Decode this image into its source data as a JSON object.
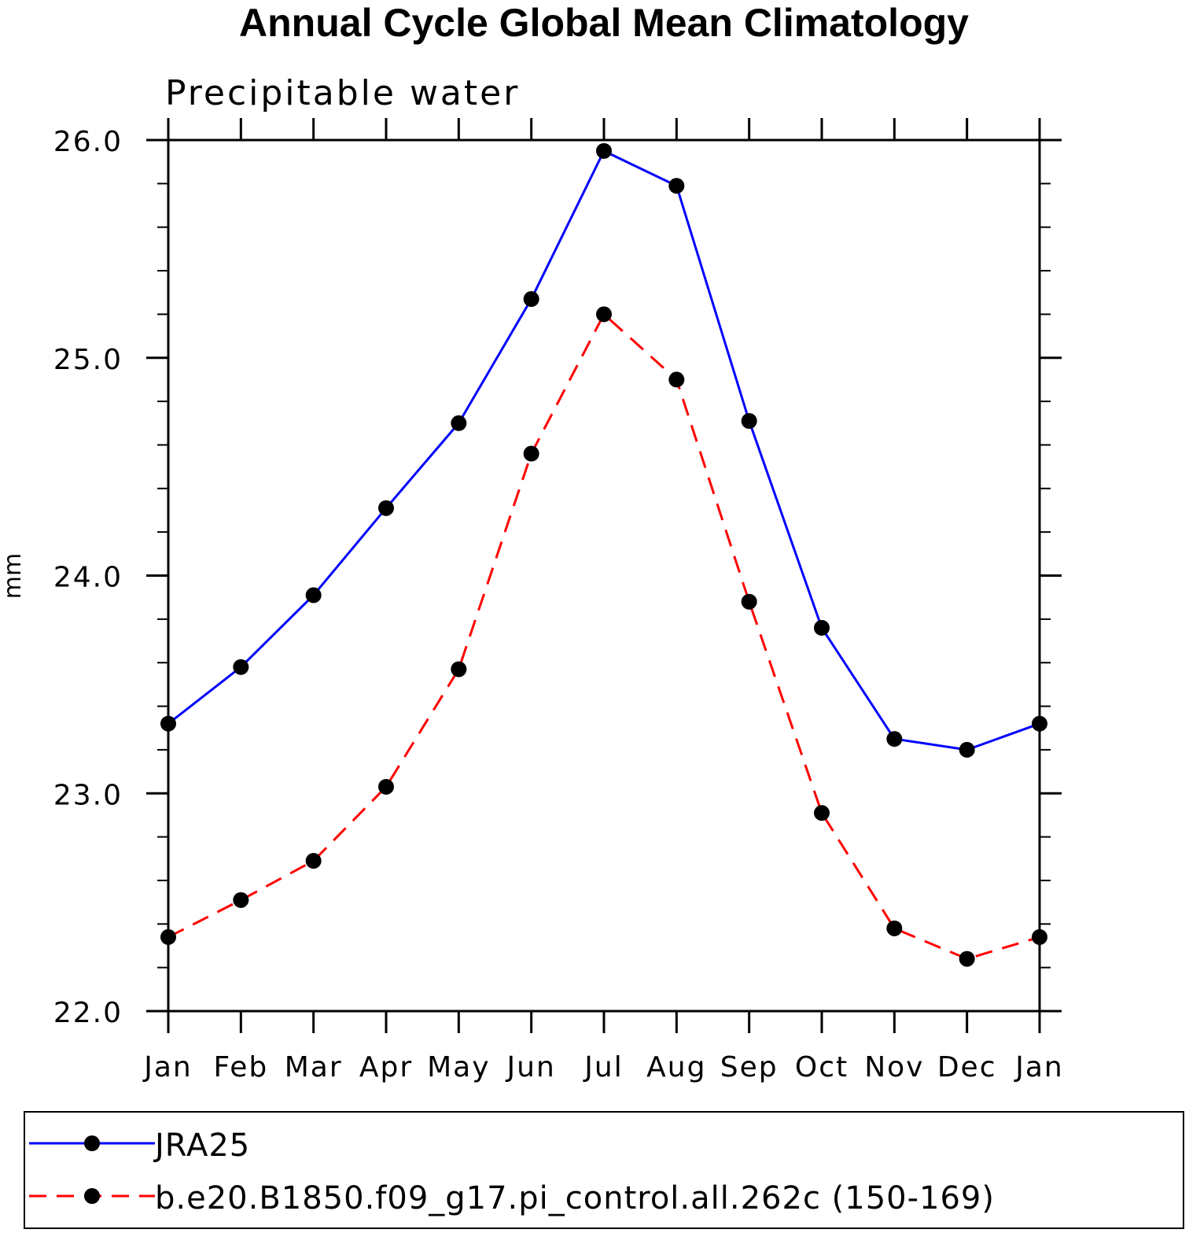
{
  "chart_data": {
    "type": "line",
    "title": "Annual Cycle Global Mean Climatology",
    "subtitle": "Precipitable water",
    "ylabel": "mm",
    "xlabel": "",
    "categories": [
      "Jan",
      "Feb",
      "Mar",
      "Apr",
      "May",
      "Jun",
      "Jul",
      "Aug",
      "Sep",
      "Oct",
      "Nov",
      "Dec",
      "Jan"
    ],
    "ylim": [
      22.0,
      26.0
    ],
    "yticks": [
      "22.0",
      "23.0",
      "24.0",
      "25.0",
      "26.0"
    ],
    "grid": false,
    "legend_position": "bottom",
    "series": [
      {
        "name": "JRA25",
        "color": "#0000ff",
        "line_style": "solid",
        "marker": "filled-circle",
        "values": [
          23.32,
          23.58,
          23.91,
          24.31,
          24.7,
          25.27,
          25.95,
          25.79,
          24.71,
          23.76,
          23.25,
          23.2,
          23.32
        ]
      },
      {
        "name": "b.e20.B1850.f09_g17.pi_control.all.262c (150-169)",
        "color": "#ff0000",
        "line_style": "dashed",
        "marker": "filled-circle",
        "values": [
          22.34,
          22.51,
          22.69,
          23.03,
          23.57,
          24.56,
          25.2,
          24.9,
          23.88,
          22.91,
          22.38,
          22.24,
          22.34
        ]
      }
    ]
  }
}
